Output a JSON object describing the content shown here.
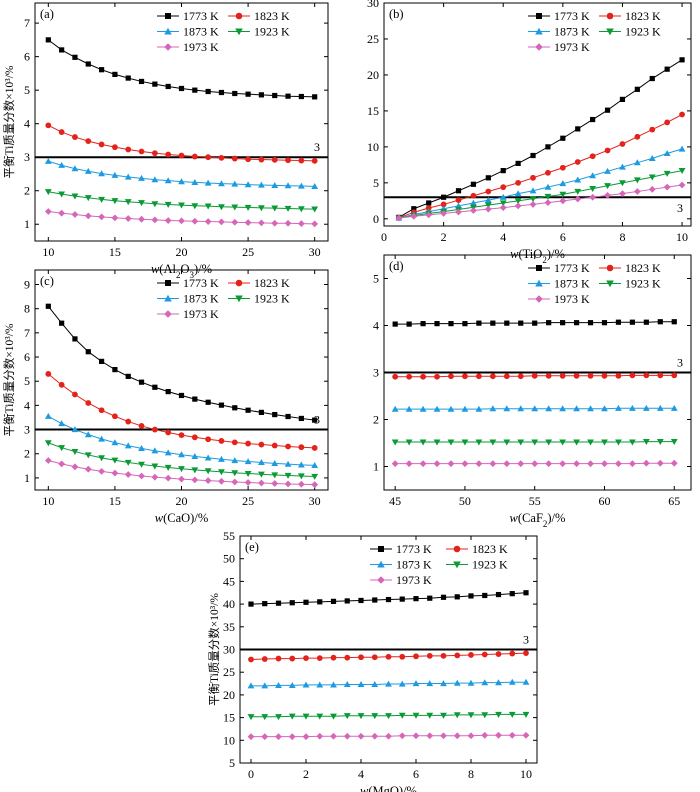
{
  "chart_data": [
    {
      "type": "line",
      "panel_label": "(a)",
      "xlabel": "w(Al2O3)/%",
      "ylabel": "平衡Ti质量分数×10³/%",
      "xlim": [
        9,
        31
      ],
      "ylim": [
        0.5,
        7.6
      ],
      "xticks": [
        "10",
        "15",
        "20",
        "25",
        "30"
      ],
      "yticks": [
        "1",
        "2",
        "3",
        "4",
        "5",
        "6",
        "7"
      ],
      "reference_line": {
        "value": 3,
        "label": "3"
      },
      "x": [
        10,
        11,
        12,
        13,
        14,
        15,
        16,
        17,
        18,
        19,
        20,
        21,
        22,
        23,
        24,
        25,
        26,
        27,
        28,
        29,
        30
      ],
      "series": [
        {
          "name": "1773 K",
          "color": "#000000",
          "marker": "square",
          "values": [
            6.5,
            6.2,
            5.98,
            5.78,
            5.61,
            5.47,
            5.36,
            5.26,
            5.18,
            5.11,
            5.05,
            5.0,
            4.96,
            4.93,
            4.9,
            4.88,
            4.86,
            4.84,
            4.82,
            4.81,
            4.8
          ]
        },
        {
          "name": "1823 K",
          "color": "#e3231b",
          "marker": "circle",
          "values": [
            3.95,
            3.75,
            3.6,
            3.48,
            3.38,
            3.3,
            3.23,
            3.17,
            3.12,
            3.08,
            3.05,
            3.02,
            3.0,
            2.98,
            2.96,
            2.94,
            2.93,
            2.92,
            2.91,
            2.9,
            2.89
          ]
        },
        {
          "name": "1873 K",
          "color": "#1e9be0",
          "marker": "triangle-up",
          "values": [
            2.88,
            2.76,
            2.66,
            2.58,
            2.51,
            2.46,
            2.41,
            2.37,
            2.33,
            2.3,
            2.27,
            2.25,
            2.23,
            2.21,
            2.2,
            2.18,
            2.17,
            2.16,
            2.15,
            2.14,
            2.13
          ]
        },
        {
          "name": "1923 K",
          "color": "#0a9a36",
          "marker": "triangle-down",
          "values": [
            1.97,
            1.9,
            1.84,
            1.79,
            1.74,
            1.7,
            1.67,
            1.64,
            1.61,
            1.59,
            1.57,
            1.55,
            1.54,
            1.52,
            1.51,
            1.5,
            1.49,
            1.48,
            1.47,
            1.46,
            1.45
          ]
        },
        {
          "name": "1973 K",
          "color": "#d566b8",
          "marker": "diamond",
          "values": [
            1.38,
            1.33,
            1.29,
            1.25,
            1.22,
            1.19,
            1.17,
            1.15,
            1.13,
            1.11,
            1.1,
            1.09,
            1.08,
            1.07,
            1.06,
            1.05,
            1.04,
            1.03,
            1.03,
            1.02,
            1.01
          ]
        }
      ]
    },
    {
      "type": "line",
      "panel_label": "(b)",
      "xlabel": "w(TiO2)/%",
      "ylabel": "",
      "xlim": [
        0,
        10.3
      ],
      "ylim": [
        -1,
        30
      ],
      "xticks": [
        "0",
        "2",
        "4",
        "6",
        "8",
        "10"
      ],
      "yticks": [
        "0",
        "5",
        "10",
        "15",
        "20",
        "25",
        "30"
      ],
      "reference_line": {
        "value": 3,
        "label": "3"
      },
      "x": [
        0.5,
        1,
        1.5,
        2,
        2.5,
        3,
        3.5,
        4,
        4.5,
        5,
        5.5,
        6,
        6.5,
        7,
        7.5,
        8,
        8.5,
        9,
        9.5,
        10
      ],
      "series": [
        {
          "name": "1773 K",
          "color": "#000000",
          "marker": "square",
          "values": [
            0.2,
            1.4,
            2.2,
            3.0,
            3.9,
            4.8,
            5.7,
            6.7,
            7.7,
            8.8,
            10.0,
            11.2,
            12.5,
            13.8,
            15.1,
            16.6,
            18.0,
            19.5,
            20.8,
            22.1
          ]
        },
        {
          "name": "1823 K",
          "color": "#e3231b",
          "marker": "circle",
          "values": [
            0.15,
            0.9,
            1.5,
            2.0,
            2.6,
            3.2,
            3.8,
            4.4,
            5.0,
            5.7,
            6.4,
            7.1,
            7.9,
            8.7,
            9.5,
            10.4,
            11.4,
            12.4,
            13.4,
            14.5
          ]
        },
        {
          "name": "1873 K",
          "color": "#1e9be0",
          "marker": "triangle-up",
          "values": [
            0.1,
            0.6,
            1.0,
            1.4,
            1.8,
            2.2,
            2.6,
            3.0,
            3.5,
            3.9,
            4.4,
            4.9,
            5.4,
            6.0,
            6.6,
            7.2,
            7.8,
            8.4,
            9.1,
            9.7
          ]
        },
        {
          "name": "1923 K",
          "color": "#0a9a36",
          "marker": "triangle-down",
          "values": [
            0.1,
            0.45,
            0.75,
            1.0,
            1.3,
            1.6,
            1.9,
            2.2,
            2.5,
            2.8,
            3.1,
            3.4,
            3.8,
            4.2,
            4.6,
            5.0,
            5.4,
            5.8,
            6.3,
            6.7
          ]
        },
        {
          "name": "1973 K",
          "color": "#d566b8",
          "marker": "diamond",
          "values": [
            0.1,
            0.35,
            0.55,
            0.75,
            0.95,
            1.15,
            1.35,
            1.55,
            1.8,
            2.0,
            2.25,
            2.5,
            2.75,
            3.0,
            3.25,
            3.5,
            3.8,
            4.1,
            4.4,
            4.7
          ]
        }
      ]
    },
    {
      "type": "line",
      "panel_label": "(c)",
      "xlabel": "w(CaO)/%",
      "ylabel": "平衡Ti质量分数×10³/%",
      "xlim": [
        9,
        31
      ],
      "ylim": [
        0.5,
        9.6
      ],
      "xticks": [
        "10",
        "15",
        "20",
        "25",
        "30"
      ],
      "yticks": [
        "1",
        "2",
        "3",
        "4",
        "5",
        "6",
        "7",
        "8",
        "9"
      ],
      "reference_line": {
        "value": 3,
        "label": "3"
      },
      "x": [
        10,
        11,
        12,
        13,
        14,
        15,
        16,
        17,
        18,
        19,
        20,
        21,
        22,
        23,
        24,
        25,
        26,
        27,
        28,
        29,
        30
      ],
      "series": [
        {
          "name": "1773 K",
          "color": "#000000",
          "marker": "square",
          "values": [
            8.1,
            7.4,
            6.75,
            6.22,
            5.82,
            5.48,
            5.2,
            4.96,
            4.75,
            4.57,
            4.41,
            4.26,
            4.13,
            4.01,
            3.9,
            3.8,
            3.71,
            3.62,
            3.54,
            3.46,
            3.39
          ]
        },
        {
          "name": "1823 K",
          "color": "#e3231b",
          "marker": "circle",
          "values": [
            5.3,
            4.85,
            4.45,
            4.1,
            3.8,
            3.55,
            3.33,
            3.15,
            3.0,
            2.88,
            2.77,
            2.68,
            2.6,
            2.53,
            2.47,
            2.42,
            2.38,
            2.34,
            2.3,
            2.27,
            2.24
          ]
        },
        {
          "name": "1873 K",
          "color": "#1e9be0",
          "marker": "triangle-up",
          "values": [
            3.55,
            3.25,
            3.0,
            2.79,
            2.61,
            2.46,
            2.33,
            2.22,
            2.12,
            2.04,
            1.96,
            1.89,
            1.83,
            1.77,
            1.72,
            1.68,
            1.64,
            1.6,
            1.57,
            1.54,
            1.52
          ]
        },
        {
          "name": "1923 K",
          "color": "#0a9a36",
          "marker": "triangle-down",
          "values": [
            2.45,
            2.25,
            2.09,
            1.95,
            1.83,
            1.73,
            1.64,
            1.56,
            1.49,
            1.43,
            1.38,
            1.33,
            1.29,
            1.25,
            1.21,
            1.18,
            1.15,
            1.12,
            1.1,
            1.08,
            1.06
          ]
        },
        {
          "name": "1973 K",
          "color": "#d566b8",
          "marker": "diamond",
          "values": [
            1.72,
            1.58,
            1.46,
            1.36,
            1.27,
            1.2,
            1.14,
            1.08,
            1.03,
            0.99,
            0.95,
            0.92,
            0.89,
            0.86,
            0.83,
            0.81,
            0.79,
            0.77,
            0.75,
            0.74,
            0.72
          ]
        }
      ]
    },
    {
      "type": "line",
      "panel_label": "(d)",
      "xlabel": "w(CaF2)/%",
      "ylabel": "",
      "xlim": [
        44.2,
        66.2
      ],
      "ylim": [
        0.5,
        5.5
      ],
      "xticks": [
        "45",
        "50",
        "55",
        "60",
        "65"
      ],
      "yticks": [
        "1",
        "2",
        "3",
        "4",
        "5"
      ],
      "reference_line": {
        "value": 3,
        "label": "3"
      },
      "x": [
        45,
        46,
        47,
        48,
        49,
        50,
        51,
        52,
        53,
        54,
        55,
        56,
        57,
        58,
        59,
        60,
        61,
        62,
        63,
        64,
        65
      ],
      "series": [
        {
          "name": "1773 K",
          "color": "#000000",
          "marker": "square",
          "values": [
            4.03,
            4.03,
            4.04,
            4.04,
            4.04,
            4.04,
            4.05,
            4.05,
            4.05,
            4.05,
            4.05,
            4.06,
            4.06,
            4.06,
            4.06,
            4.06,
            4.07,
            4.07,
            4.07,
            4.08,
            4.08
          ]
        },
        {
          "name": "1823 K",
          "color": "#e3231b",
          "marker": "circle",
          "values": [
            2.91,
            2.91,
            2.91,
            2.91,
            2.92,
            2.92,
            2.92,
            2.92,
            2.92,
            2.92,
            2.93,
            2.93,
            2.93,
            2.93,
            2.93,
            2.93,
            2.93,
            2.94,
            2.94,
            2.94,
            2.94
          ]
        },
        {
          "name": "1873 K",
          "color": "#1e9be0",
          "marker": "triangle-up",
          "values": [
            2.22,
            2.22,
            2.22,
            2.22,
            2.22,
            2.22,
            2.22,
            2.23,
            2.23,
            2.23,
            2.23,
            2.23,
            2.23,
            2.23,
            2.23,
            2.23,
            2.24,
            2.24,
            2.24,
            2.24,
            2.24
          ]
        },
        {
          "name": "1923 K",
          "color": "#0a9a36",
          "marker": "triangle-down",
          "values": [
            1.52,
            1.52,
            1.52,
            1.52,
            1.52,
            1.52,
            1.52,
            1.52,
            1.52,
            1.52,
            1.52,
            1.52,
            1.52,
            1.52,
            1.52,
            1.52,
            1.52,
            1.52,
            1.53,
            1.53,
            1.53
          ]
        },
        {
          "name": "1973 K",
          "color": "#d566b8",
          "marker": "diamond",
          "values": [
            1.06,
            1.06,
            1.06,
            1.06,
            1.06,
            1.06,
            1.06,
            1.06,
            1.06,
            1.06,
            1.06,
            1.06,
            1.06,
            1.06,
            1.06,
            1.06,
            1.06,
            1.06,
            1.07,
            1.07,
            1.07
          ]
        }
      ]
    },
    {
      "type": "line",
      "panel_label": "(e)",
      "xlabel": "w(MgO)/%",
      "ylabel": "平衡Ti质量分数×10³/%",
      "xlim": [
        -0.4,
        10.4
      ],
      "ylim": [
        5,
        55
      ],
      "xticks": [
        "0",
        "2",
        "4",
        "6",
        "8",
        "10"
      ],
      "yticks": [
        "5",
        "10",
        "15",
        "20",
        "25",
        "30",
        "35",
        "40",
        "45",
        "50",
        "55"
      ],
      "reference_line": {
        "value": 30,
        "label": "3"
      },
      "x": [
        0,
        0.5,
        1,
        1.5,
        2,
        2.5,
        3,
        3.5,
        4,
        4.5,
        5,
        5.5,
        6,
        6.5,
        7,
        7.5,
        8,
        8.5,
        9,
        9.5,
        10
      ],
      "series": [
        {
          "name": "1773 K",
          "color": "#000000",
          "marker": "square",
          "values": [
            40.0,
            40.1,
            40.2,
            40.3,
            40.4,
            40.5,
            40.6,
            40.7,
            40.8,
            40.9,
            41.0,
            41.1,
            41.2,
            41.3,
            41.5,
            41.6,
            41.8,
            41.9,
            42.1,
            42.3,
            42.5
          ]
        },
        {
          "name": "1823 K",
          "color": "#e3231b",
          "marker": "circle",
          "values": [
            27.8,
            27.9,
            28.0,
            28.0,
            28.1,
            28.1,
            28.2,
            28.2,
            28.3,
            28.3,
            28.4,
            28.4,
            28.5,
            28.6,
            28.6,
            28.7,
            28.8,
            28.9,
            29.0,
            29.1,
            29.2
          ]
        },
        {
          "name": "1873 K",
          "color": "#1e9be0",
          "marker": "triangle-up",
          "values": [
            22.0,
            22.0,
            22.1,
            22.1,
            22.2,
            22.2,
            22.2,
            22.3,
            22.3,
            22.3,
            22.4,
            22.4,
            22.5,
            22.5,
            22.5,
            22.6,
            22.6,
            22.7,
            22.7,
            22.8,
            22.8
          ]
        },
        {
          "name": "1923 K",
          "color": "#0a9a36",
          "marker": "triangle-down",
          "values": [
            15.2,
            15.2,
            15.2,
            15.3,
            15.3,
            15.3,
            15.3,
            15.4,
            15.4,
            15.4,
            15.4,
            15.5,
            15.5,
            15.5,
            15.5,
            15.6,
            15.6,
            15.6,
            15.7,
            15.7,
            15.7
          ]
        },
        {
          "name": "1973 K",
          "color": "#d566b8",
          "marker": "diamond",
          "values": [
            10.8,
            10.8,
            10.8,
            10.8,
            10.8,
            10.9,
            10.9,
            10.9,
            10.9,
            10.9,
            10.9,
            11.0,
            11.0,
            11.0,
            11.0,
            11.0,
            11.0,
            11.1,
            11.1,
            11.1,
            11.1
          ]
        }
      ]
    }
  ]
}
